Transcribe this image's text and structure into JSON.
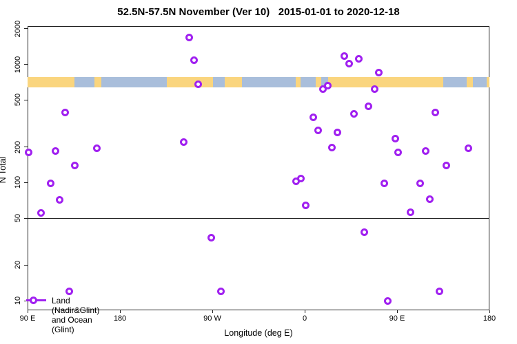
{
  "chart_data": {
    "type": "scatter",
    "title": "52.5N-57.5N November (Ver 10)   2015-01-01 to 2020-12-18",
    "xlabel": "Longitude (deg E)",
    "ylabel": "N Total",
    "legend_label": "Land (Nadir&Glint) and Ocean (Glint)",
    "x_axis": {
      "span_deg": 450,
      "note": "axis starts at 90E and wraps eastward through 180, 90W, 0, 90E to 180",
      "ticks": [
        {
          "pos": 0,
          "label": "90 E"
        },
        {
          "pos": 90,
          "label": "180"
        },
        {
          "pos": 180,
          "label": "90 W"
        },
        {
          "pos": 270,
          "label": "0"
        },
        {
          "pos": 360,
          "label": "90 E"
        },
        {
          "pos": 450,
          "label": "180"
        }
      ]
    },
    "y_axis": {
      "scale": "log",
      "ylim": [
        8.3,
        2110
      ],
      "ticks": [
        10,
        20,
        50,
        100,
        200,
        500,
        1000,
        2000
      ]
    },
    "reference_line_n": 50,
    "colors": {
      "point": "#A020F0",
      "land": "#FAD57E",
      "ocean": "#A9BEDB",
      "axis": "#222222"
    },
    "map_band": {
      "n_top": 780,
      "n_bottom": 640,
      "segments": [
        {
          "from": 0,
          "to": 46,
          "type": "land"
        },
        {
          "from": 46,
          "to": 65,
          "type": "ocean"
        },
        {
          "from": 65,
          "to": 72,
          "type": "land"
        },
        {
          "from": 72,
          "to": 136,
          "type": "ocean"
        },
        {
          "from": 136,
          "to": 181,
          "type": "land"
        },
        {
          "from": 181,
          "to": 192,
          "type": "ocean"
        },
        {
          "from": 192,
          "to": 209,
          "type": "land"
        },
        {
          "from": 209,
          "to": 261,
          "type": "ocean"
        },
        {
          "from": 261,
          "to": 266,
          "type": "land"
        },
        {
          "from": 266,
          "to": 281,
          "type": "ocean"
        },
        {
          "from": 281,
          "to": 286,
          "type": "land"
        },
        {
          "from": 286,
          "to": 293,
          "type": "ocean"
        },
        {
          "from": 293,
          "to": 405,
          "type": "land"
        },
        {
          "from": 405,
          "to": 428,
          "type": "ocean"
        },
        {
          "from": 428,
          "to": 434,
          "type": "land"
        },
        {
          "from": 434,
          "to": 447,
          "type": "ocean"
        },
        {
          "from": 447,
          "to": 450,
          "type": "land"
        }
      ]
    },
    "points_format": "[longitude_display_deg_from_90E, N_total]",
    "points": [
      [
        1.3,
        180
      ],
      [
        12.8,
        55
      ],
      [
        22.2,
        98
      ],
      [
        27.5,
        185
      ],
      [
        30.9,
        71
      ],
      [
        36.9,
        390
      ],
      [
        40.3,
        12
      ],
      [
        46.3,
        140
      ],
      [
        67.8,
        195
      ],
      [
        151.8,
        220
      ],
      [
        157.8,
        1700
      ],
      [
        161.9,
        1080
      ],
      [
        165.9,
        675
      ],
      [
        178.7,
        34
      ],
      [
        188.7,
        12
      ],
      [
        261.9,
        103
      ],
      [
        266.0,
        108
      ],
      [
        270.7,
        64
      ],
      [
        278.7,
        355
      ],
      [
        282.8,
        278
      ],
      [
        287.5,
        615
      ],
      [
        292.2,
        665
      ],
      [
        296.2,
        199
      ],
      [
        302.2,
        267
      ],
      [
        308.3,
        1185
      ],
      [
        313.0,
        1010
      ],
      [
        317.7,
        384
      ],
      [
        322.4,
        1110
      ],
      [
        327.8,
        38
      ],
      [
        332.4,
        440
      ],
      [
        338.5,
        615
      ],
      [
        342.5,
        858
      ],
      [
        347.9,
        99
      ],
      [
        350.6,
        10
      ],
      [
        358.0,
        237
      ],
      [
        361.3,
        180
      ],
      [
        373.4,
        56
      ],
      [
        382.8,
        99
      ],
      [
        388.2,
        185
      ],
      [
        391.6,
        72
      ],
      [
        397.6,
        390
      ],
      [
        401.0,
        12
      ],
      [
        407.7,
        140
      ],
      [
        429.8,
        195
      ]
    ]
  }
}
